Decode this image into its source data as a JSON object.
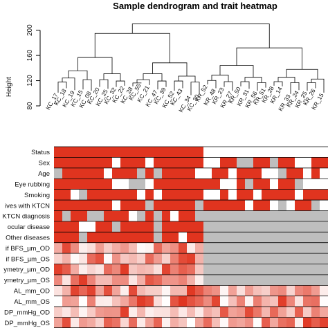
{
  "chart_data": {
    "type": "heatmap",
    "title": "Sample dendrogram and trait heatmap",
    "ylabel": "Height",
    "yticks": [
      80,
      120,
      160,
      200
    ],
    "ylim": [
      80,
      215
    ],
    "leaves": [
      "KC_17",
      "KC_18",
      "KC_19",
      "KC_15",
      "KC_08",
      "KC_20",
      "KC_25",
      "KC_32",
      "KC_22",
      "KC_28",
      "KC_55",
      "KC_21",
      "KC_47",
      "KC_39",
      "KC_52",
      "KC_43",
      "KC_34",
      "KC_30",
      "KR_52",
      "KR_48",
      "KR_23",
      "KR_27",
      "KR_50",
      "KR_31",
      "KR_56",
      "KR_51",
      "KR_28",
      "KR_14",
      "KR_33",
      "KR_24",
      "KR_25",
      "KR_26",
      "KR_15"
    ],
    "traits": [
      "Status",
      "Sex",
      "Age",
      "Eye rubbing",
      "Smoking",
      "Relatives with KTCN",
      "KTCN diagnosis",
      "Other ocular disease",
      "Other diseases",
      "Kerato-dif BFS_µm_OD",
      "Kerato-dif BFS_µm_OS",
      "Asymetry_µm_OD",
      "Asymetry_µm_OS",
      "AL_mm_OD",
      "AL_mm_OS",
      "IOP_mmHg_OD",
      "IOP_mmHg_OS"
    ],
    "trait_labels_visible": [
      "Status",
      "Sex",
      "Age",
      "Eye rubbing",
      "Smoking",
      "ives with KTCN",
      "KTCN diagnosis",
      "ocular disease",
      "Other diseases",
      "if BFS_µm_OD",
      "if BFS_µm_OS",
      "ymetry_µm_OD",
      "ymetry_µm_OS",
      "AL_mm_OD",
      "AL_mm_OS",
      "DP_mmHg_OD",
      "DP_mmHg_OS"
    ],
    "color_scale": {
      "low": "#ffffff",
      "high": "#e0341f",
      "missing": "#bebebe"
    },
    "legend": "none",
    "grid": false
  }
}
